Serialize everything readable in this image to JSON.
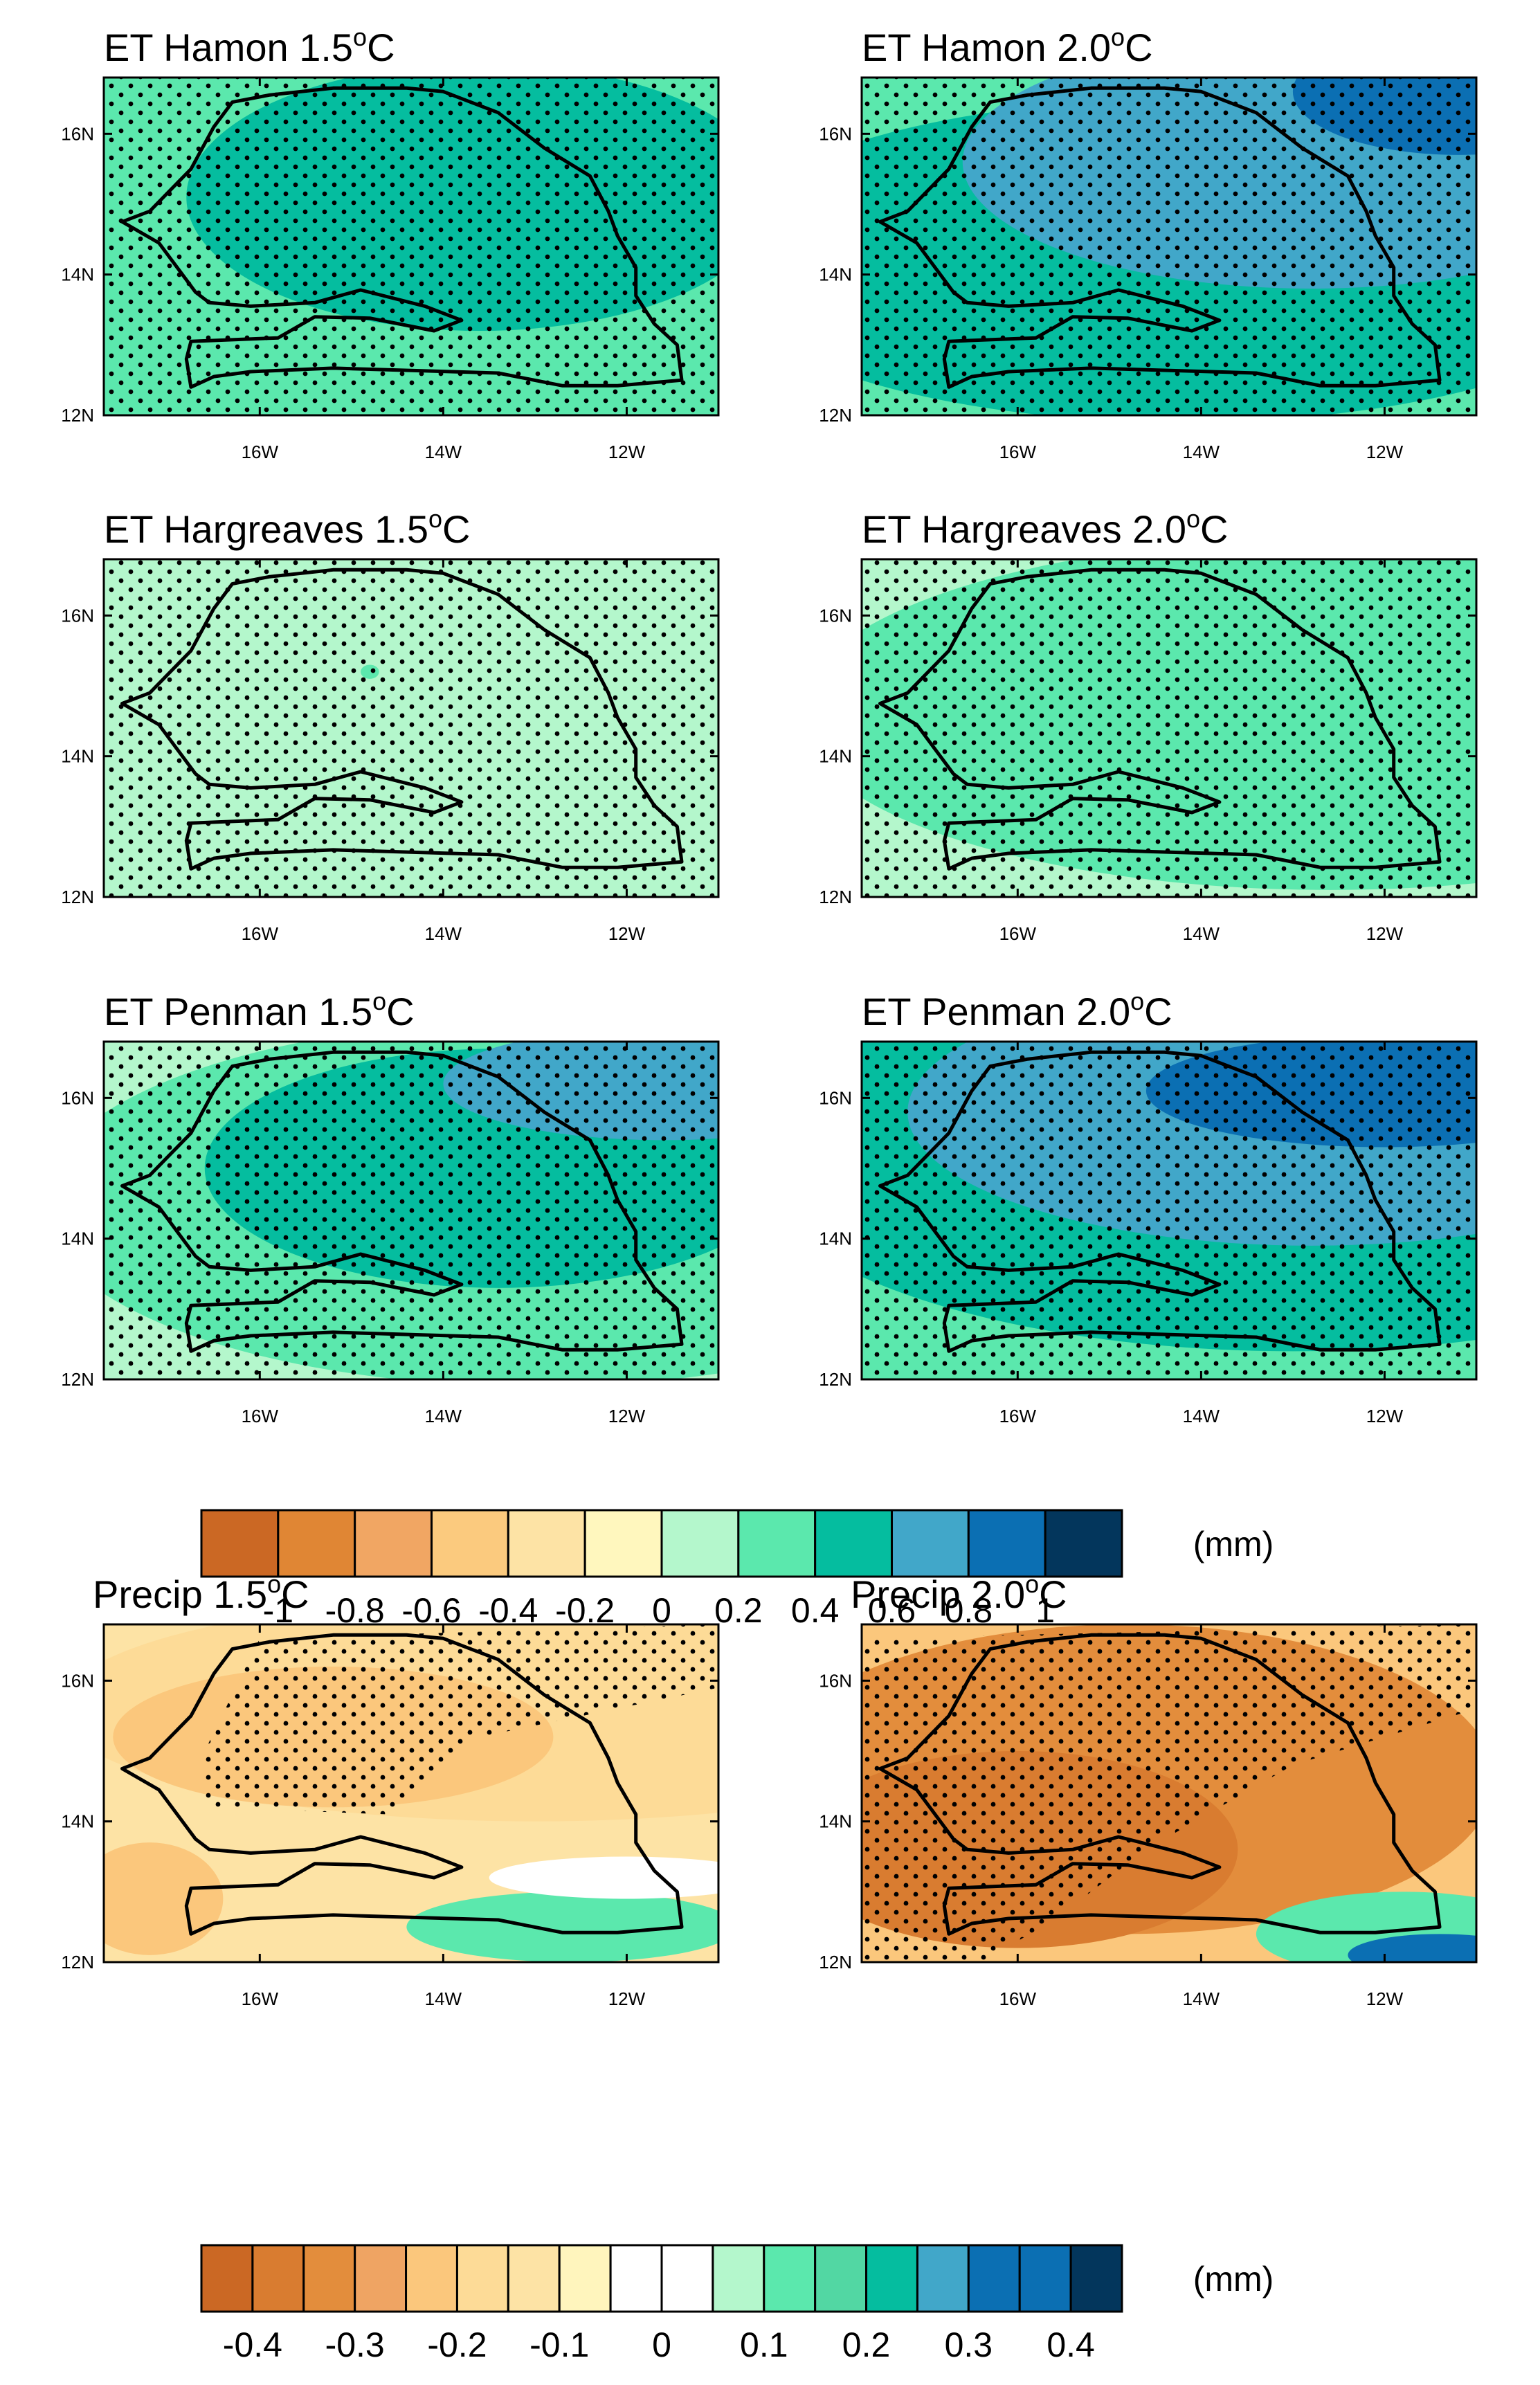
{
  "chart_data": [
    {
      "type": "heatmap",
      "title_main": "ET Hamon 1.5",
      "title_unit": "C",
      "degree": "o",
      "xticks": [
        "16W",
        "14W",
        "12W"
      ],
      "yticks": [
        "16N",
        "14N",
        "12N"
      ],
      "xlim": [
        -17.7,
        -11.0
      ],
      "ylim": [
        12.0,
        16.8
      ],
      "variable": "ET",
      "blobs": [
        {
          "lon": -13.6,
          "lat": 15.1,
          "rx": 3.2,
          "ry": 1.9,
          "value": 0.5
        }
      ],
      "base_value": 0.3,
      "stippled": true
    },
    {
      "type": "heatmap",
      "title_main": "ET Hamon 2.0",
      "title_unit": "C",
      "degree": "o",
      "xticks": [
        "16W",
        "14W",
        "12W"
      ],
      "yticks": [
        "16N",
        "14N",
        "12N"
      ],
      "xlim": [
        -17.7,
        -11.0
      ],
      "ylim": [
        12.0,
        16.8
      ],
      "variable": "ET",
      "blobs": [
        {
          "lon": -14.2,
          "lat": 14.2,
          "rx": 5.2,
          "ry": 2.3,
          "value": 0.5
        },
        {
          "lon": -12.8,
          "lat": 15.6,
          "rx": 3.8,
          "ry": 1.8,
          "value": 0.7
        },
        {
          "lon": -11.2,
          "lat": 16.6,
          "rx": 1.8,
          "ry": 0.9,
          "value": 0.9
        }
      ],
      "base_value": 0.3,
      "stippled": true
    },
    {
      "type": "heatmap",
      "title_main": "ET Hargreaves 1.5",
      "title_unit": "C",
      "degree": "o",
      "xticks": [
        "16W",
        "14W",
        "12W"
      ],
      "yticks": [
        "16N",
        "14N",
        "12N"
      ],
      "xlim": [
        -17.7,
        -11.0
      ],
      "ylim": [
        12.0,
        16.8
      ],
      "variable": "ET",
      "blobs": [
        {
          "lon": -14.8,
          "lat": 15.2,
          "rx": 0.1,
          "ry": 0.1,
          "value": 0.3
        }
      ],
      "base_value": 0.1,
      "stippled": true
    },
    {
      "type": "heatmap",
      "title_main": "ET Hargreaves 2.0",
      "title_unit": "C",
      "degree": "o",
      "xticks": [
        "16W",
        "14W",
        "12W"
      ],
      "yticks": [
        "16N",
        "14N",
        "12N"
      ],
      "xlim": [
        -17.7,
        -11.0
      ],
      "ylim": [
        12.0,
        16.8
      ],
      "variable": "ET",
      "blobs": [
        {
          "lon": -12.6,
          "lat": 14.6,
          "rx": 5.8,
          "ry": 2.5,
          "value": 0.3
        }
      ],
      "base_value": 0.1,
      "stippled": true
    },
    {
      "type": "heatmap",
      "title_main": "ET Penman 1.5",
      "title_unit": "C",
      "degree": "o",
      "xticks": [
        "16W",
        "14W",
        "12W"
      ],
      "yticks": [
        "16N",
        "14N",
        "12N"
      ],
      "xlim": [
        -17.7,
        -11.0
      ],
      "ylim": [
        12.0,
        16.8
      ],
      "variable": "ET",
      "blobs": [
        {
          "lon": -13.0,
          "lat": 14.5,
          "rx": 5.4,
          "ry": 2.6,
          "value": 0.3
        },
        {
          "lon": -13.4,
          "lat": 15.0,
          "rx": 3.2,
          "ry": 1.7,
          "value": 0.5
        },
        {
          "lon": -11.6,
          "lat": 16.2,
          "rx": 2.4,
          "ry": 0.8,
          "value": 0.7
        }
      ],
      "base_value": 0.1,
      "stippled": true
    },
    {
      "type": "heatmap",
      "title_main": "ET Penman 2.0",
      "title_unit": "C",
      "degree": "o",
      "xticks": [
        "16W",
        "14W",
        "12W"
      ],
      "yticks": [
        "16N",
        "14N",
        "12N"
      ],
      "xlim": [
        -17.7,
        -11.0
      ],
      "ylim": [
        12.0,
        16.8
      ],
      "variable": "ET",
      "blobs": [
        {
          "lon": -13.0,
          "lat": 15.2,
          "rx": 6.0,
          "ry": 2.8,
          "value": 0.5
        },
        {
          "lon": -12.8,
          "lat": 15.8,
          "rx": 4.4,
          "ry": 1.9,
          "value": 0.7
        },
        {
          "lon": -12.0,
          "lat": 16.1,
          "rx": 2.6,
          "ry": 0.8,
          "value": 0.9
        }
      ],
      "base_value": 0.3,
      "stippled": true
    },
    {
      "type": "heatmap",
      "title_main": "Precip 1.5",
      "title_unit": "C",
      "degree": "o",
      "xticks": [
        "16W",
        "14W",
        "12W"
      ],
      "yticks": [
        "16N",
        "14N",
        "12N"
      ],
      "xlim": [
        -17.7,
        -11.0
      ],
      "ylim": [
        12.0,
        16.8
      ],
      "variable": "Precip",
      "blobs": [
        {
          "lon": -13.0,
          "lat": 15.6,
          "rx": 5.2,
          "ry": 1.6,
          "value": -0.175
        },
        {
          "lon": -15.2,
          "lat": 15.2,
          "rx": 2.4,
          "ry": 1.0,
          "value": -0.225
        },
        {
          "lon": -17.2,
          "lat": 12.9,
          "rx": 0.8,
          "ry": 0.8,
          "value": -0.225
        },
        {
          "lon": -12.6,
          "lat": 12.5,
          "rx": 1.8,
          "ry": 0.5,
          "value": 0.125
        },
        {
          "lon": -12.0,
          "lat": 13.2,
          "rx": 1.5,
          "ry": 0.3,
          "value": 0.025
        }
      ],
      "base_value": -0.125,
      "stippled": true
    },
    {
      "type": "heatmap",
      "title_main": "Precip 2.0",
      "title_unit": "C",
      "degree": "o",
      "xticks": [
        "16W",
        "14W",
        "12W"
      ],
      "yticks": [
        "16N",
        "14N",
        "12N"
      ],
      "xlim": [
        -17.7,
        -11.0
      ],
      "ylim": [
        12.0,
        16.8
      ],
      "variable": "Precip",
      "blobs": [
        {
          "lon": -14.8,
          "lat": 14.6,
          "rx": 4.0,
          "ry": 2.2,
          "value": -0.325
        },
        {
          "lon": -16.0,
          "lat": 13.6,
          "rx": 2.4,
          "ry": 1.4,
          "value": -0.375
        },
        {
          "lon": -11.8,
          "lat": 12.4,
          "rx": 1.6,
          "ry": 0.6,
          "value": 0.125
        },
        {
          "lon": -11.4,
          "lat": 12.1,
          "rx": 1.0,
          "ry": 0.3,
          "value": 0.325
        }
      ],
      "base_value": -0.225,
      "stippled": true
    }
  ],
  "colorbars": {
    "et": {
      "labels": [
        "-1",
        "-0.8",
        "-0.6",
        "-0.4",
        "-0.2",
        "0",
        "0.2",
        "0.4",
        "0.6",
        "0.8",
        "1"
      ],
      "colors": [
        "#cb6824",
        "#e08634",
        "#f1a663",
        "#fbca7e",
        "#fde3a5",
        "#fff7be",
        "#b4f7cc",
        "#5be8ad",
        "#05bd9f",
        "#41a7c9",
        "#0b6fb3",
        "#03365c"
      ],
      "unit": "(mm)"
    },
    "precip": {
      "labels": [
        "-0.4",
        "-0.3",
        "-0.2",
        "-0.1",
        "0",
        "0.1",
        "0.2",
        "0.3",
        "0.4"
      ],
      "colors": [
        "#cb6824",
        "#d97c30",
        "#e38d3c",
        "#efa463",
        "#fbc77c",
        "#fddb97",
        "#fde3a5",
        "#fff5bd",
        "#ffffff",
        "#ffffff",
        "#b4f7cc",
        "#5be8ad",
        "#52d7a3",
        "#05bd9f",
        "#41a7c9",
        "#0b6fb3",
        "#0b6fb3",
        "#03365c"
      ],
      "unit": "(mm)"
    }
  }
}
